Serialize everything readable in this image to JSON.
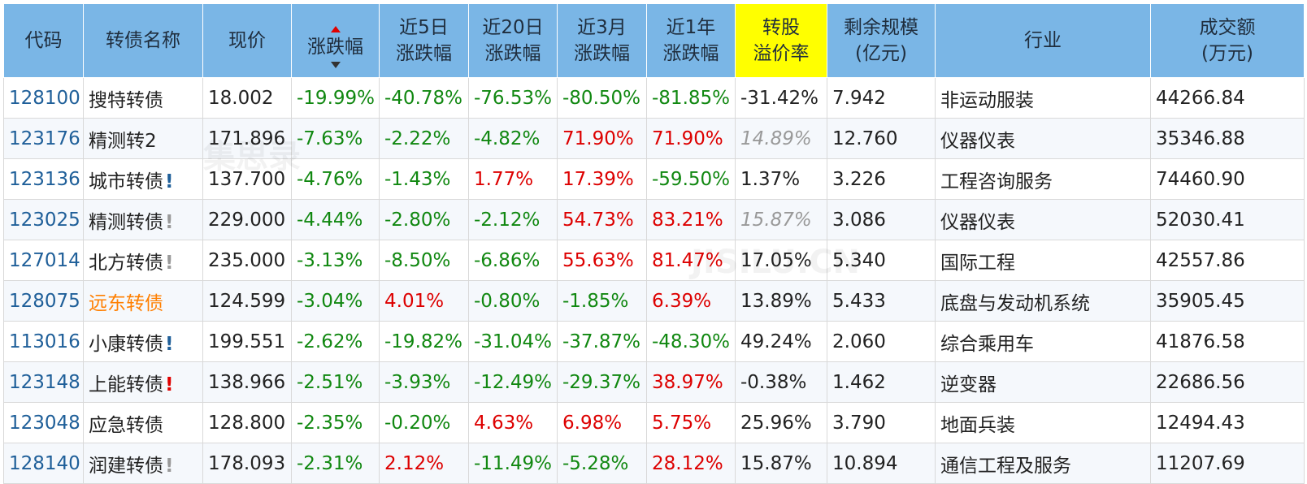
{
  "headers": {
    "code": "代码",
    "name": "转债名称",
    "price": "现价",
    "change": "涨跌幅",
    "d5": [
      "近5日",
      "涨跌幅"
    ],
    "d20": [
      "近20日",
      "涨跌幅"
    ],
    "m3": [
      "近3月",
      "涨跌幅"
    ],
    "y1": [
      "近1年",
      "涨跌幅"
    ],
    "premium": [
      "转股",
      "溢价率"
    ],
    "scale": [
      "剩余规模",
      "(亿元)"
    ],
    "industry": "行业",
    "volume": [
      "成交额",
      "(万元)"
    ]
  },
  "rows": [
    {
      "code": "128100",
      "name": "搜特转债",
      "flag": "",
      "price": "18.002",
      "change": "-19.99%",
      "d5": "-40.78%",
      "d20": "-76.53%",
      "m3": "-80.50%",
      "y1": "-81.85%",
      "premium": "-31.42%",
      "scale": "7.942",
      "industry": "非运动服装",
      "volume": "44266.84"
    },
    {
      "code": "123176",
      "name": "精测转2",
      "flag": "",
      "price": "171.896",
      "change": "-7.63%",
      "d5": "-2.22%",
      "d20": "-4.82%",
      "m3": "71.90%",
      "y1": "71.90%",
      "premium": "14.89%",
      "scale": "12.760",
      "industry": "仪器仪表",
      "volume": "35346.88"
    },
    {
      "code": "123136",
      "name": "城市转债",
      "flag": "!",
      "price": "137.700",
      "change": "-4.76%",
      "d5": "-1.43%",
      "d20": "1.77%",
      "m3": "17.39%",
      "y1": "-59.50%",
      "premium": "1.37%",
      "scale": "3.226",
      "industry": "工程咨询服务",
      "volume": "74460.90"
    },
    {
      "code": "123025",
      "name": "精测转债",
      "flag": "!",
      "price": "229.000",
      "change": "-4.44%",
      "d5": "-2.80%",
      "d20": "-2.12%",
      "m3": "54.73%",
      "y1": "83.21%",
      "premium": "15.87%",
      "scale": "3.086",
      "industry": "仪器仪表",
      "volume": "52030.41"
    },
    {
      "code": "127014",
      "name": "北方转债",
      "flag": "!",
      "price": "235.000",
      "change": "-3.13%",
      "d5": "-8.50%",
      "d20": "-6.86%",
      "m3": "55.63%",
      "y1": "81.47%",
      "premium": "17.05%",
      "scale": "5.340",
      "industry": "国际工程",
      "volume": "42557.86"
    },
    {
      "code": "128075",
      "name": "远东转债",
      "flag": "",
      "price": "124.599",
      "change": "-3.04%",
      "d5": "4.01%",
      "d20": "-0.80%",
      "m3": "-1.85%",
      "y1": "6.39%",
      "premium": "13.89%",
      "scale": "5.433",
      "industry": "底盘与发动机系统",
      "volume": "35905.45"
    },
    {
      "code": "113016",
      "name": "小康转债",
      "flag": "!",
      "price": "199.551",
      "change": "-2.62%",
      "d5": "-19.82%",
      "d20": "-31.04%",
      "m3": "-37.87%",
      "y1": "-48.30%",
      "premium": "49.24%",
      "scale": "2.060",
      "industry": "综合乘用车",
      "volume": "41876.58"
    },
    {
      "code": "123148",
      "name": "上能转债",
      "flag": "!",
      "price": "138.966",
      "change": "-2.51%",
      "d5": "-3.93%",
      "d20": "-12.49%",
      "m3": "-29.37%",
      "y1": "38.97%",
      "premium": "-0.38%",
      "scale": "1.462",
      "industry": "逆变器",
      "volume": "22686.56"
    },
    {
      "code": "123048",
      "name": "应急转债",
      "flag": "",
      "price": "128.800",
      "change": "-2.35%",
      "d5": "-0.20%",
      "d20": "4.63%",
      "m3": "6.98%",
      "y1": "5.75%",
      "premium": "25.96%",
      "scale": "3.790",
      "industry": "地面兵装",
      "volume": "12494.43"
    },
    {
      "code": "128140",
      "name": "润建转债",
      "flag": "!",
      "price": "178.093",
      "change": "-2.31%",
      "d5": "2.12%",
      "d20": "-11.49%",
      "m3": "-5.28%",
      "y1": "28.12%",
      "premium": "15.87%",
      "scale": "10.894",
      "industry": "通信工程及服务",
      "volume": "11207.69"
    }
  ],
  "colors": {
    "header_bg": "#7ab6e6",
    "highlight_header_bg": "#ffff00",
    "down": "#118811",
    "up": "#dd0000",
    "code": "#1f5f99",
    "name_highlight": "#ff7f00"
  },
  "icons": {
    "sort_up": "sort-up-icon",
    "sort_down": "sort-down-icon"
  },
  "watermark": [
    "集思录",
    "JISILU.CN"
  ]
}
